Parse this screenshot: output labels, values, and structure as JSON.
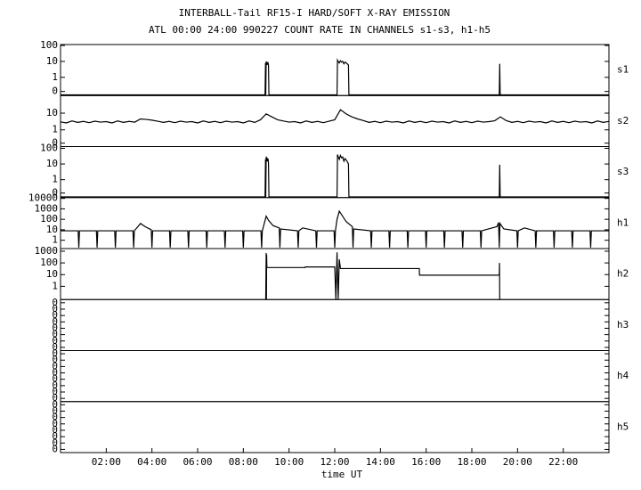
{
  "chart_data": [
    {
      "type": "line",
      "title": "INTERBALL-Tail RF15-I HARD/SOFT X-RAY EMISSION",
      "subtitle": "ATL 00:00 24:00 990227  COUNT RATE IN CHANNELS s1-s3, h1-h5",
      "label": "s1",
      "log": true,
      "color": "#000000",
      "xlim": [
        0,
        24
      ],
      "ylim": [
        0.072,
        114
      ],
      "yticks": [
        100,
        10,
        1,
        {
          "value": 0.13,
          "label": "0"
        }
      ],
      "x": [
        0,
        8.95,
        8.97,
        8.98,
        9.0,
        9.02,
        9.04,
        9.06,
        9.08,
        9.1,
        9.12,
        12.1,
        12.12,
        12.15,
        12.2,
        12.25,
        12.3,
        12.35,
        12.4,
        12.45,
        12.5,
        12.55,
        12.6,
        12.62,
        19.2,
        19.22,
        19.24,
        24
      ],
      "values": [
        0.08,
        0.08,
        8,
        0.08,
        10,
        6,
        9,
        7,
        8,
        6,
        0.08,
        0.08,
        12,
        10,
        8,
        11,
        9,
        10,
        7,
        9,
        8,
        7,
        6,
        0.08,
        0.08,
        7,
        0.08,
        0.08
      ]
    },
    {
      "type": "line",
      "label": "s2",
      "log": true,
      "color": "#000000",
      "xlim": [
        0,
        24
      ],
      "ylim": [
        0.1,
        113
      ],
      "yticks": [
        10,
        1,
        {
          "value": 0.16,
          "label": "0"
        }
      ],
      "x": [
        0,
        0.25,
        0.5,
        0.75,
        1,
        1.25,
        1.5,
        1.75,
        2,
        2.25,
        2.5,
        2.75,
        3,
        3.25,
        3.5,
        3.75,
        4,
        4.25,
        4.5,
        4.75,
        5,
        5.25,
        5.5,
        5.75,
        6,
        6.25,
        6.5,
        6.75,
        7,
        7.25,
        7.5,
        7.75,
        8,
        8.25,
        8.5,
        8.75,
        9,
        9.25,
        9.5,
        9.75,
        10,
        10.25,
        10.5,
        10.75,
        11,
        11.25,
        11.5,
        11.75,
        12,
        12.25,
        12.5,
        12.75,
        13,
        13.25,
        13.5,
        13.75,
        14,
        14.25,
        14.5,
        14.75,
        15,
        15.25,
        15.5,
        15.75,
        16,
        16.25,
        16.5,
        16.75,
        17,
        17.25,
        17.5,
        17.75,
        18,
        18.25,
        18.5,
        18.75,
        19,
        19.25,
        19.5,
        19.75,
        20,
        20.25,
        20.5,
        20.75,
        21,
        21.25,
        21.5,
        21.75,
        22,
        22.25,
        22.5,
        22.75,
        23,
        23.25,
        23.5,
        23.75,
        24
      ],
      "values": [
        3,
        2.6,
        3.4,
        2.8,
        3.2,
        2.7,
        3.3,
        2.9,
        3.1,
        2.6,
        3.4,
        2.8,
        3.2,
        2.9,
        4.5,
        4.2,
        3.8,
        3.3,
        2.8,
        3.2,
        2.7,
        3.3,
        2.9,
        3.1,
        2.6,
        3.4,
        2.8,
        3.2,
        2.7,
        3.3,
        2.9,
        3.1,
        2.6,
        3.4,
        2.8,
        4,
        9,
        6,
        4,
        3.4,
        2.9,
        3.1,
        2.6,
        3.4,
        2.8,
        3.2,
        2.7,
        3.3,
        4,
        16,
        9,
        6,
        4.5,
        3.6,
        2.8,
        3.2,
        2.7,
        3.3,
        2.9,
        3.1,
        2.6,
        3.4,
        2.8,
        3.2,
        2.7,
        3.3,
        2.9,
        3.1,
        2.6,
        3.4,
        2.8,
        3.2,
        2.7,
        3.3,
        2.9,
        3.1,
        3.5,
        6,
        3.6,
        2.8,
        3.2,
        2.7,
        3.3,
        2.9,
        3.1,
        2.6,
        3.4,
        2.8,
        3.2,
        2.7,
        3.3,
        2.9,
        3.1,
        2.6,
        3.4,
        2.8,
        3.2
      ]
    },
    {
      "type": "line",
      "label": "s3",
      "log": true,
      "color": "#000000",
      "xlim": [
        0,
        24
      ],
      "ylim": [
        0.072,
        130
      ],
      "yticks": [
        100,
        10,
        1,
        {
          "value": 0.14,
          "label": "0"
        }
      ],
      "x": [
        0,
        8.95,
        8.97,
        8.98,
        9.0,
        9.02,
        9.04,
        9.06,
        9.08,
        9.1,
        9.12,
        12.1,
        12.12,
        12.15,
        12.2,
        12.25,
        12.3,
        12.35,
        12.4,
        12.45,
        12.5,
        12.55,
        12.6,
        12.62,
        19.2,
        19.22,
        19.24,
        24
      ],
      "values": [
        0.08,
        0.08,
        20,
        0.08,
        30,
        15,
        25,
        18,
        22,
        12,
        0.08,
        0.08,
        40,
        30,
        20,
        35,
        25,
        28,
        15,
        22,
        18,
        14,
        10,
        0.08,
        0.08,
        9,
        0.08,
        0.08
      ]
    },
    {
      "type": "line",
      "label": "h1",
      "log": true,
      "color": "#000000",
      "xlim": [
        0,
        24
      ],
      "ylim": [
        0.16,
        12000
      ],
      "yticks": [
        10000,
        1000,
        100,
        10,
        1
      ],
      "x": [
        0,
        0.77,
        0.8,
        0.83,
        1.57,
        1.6,
        1.63,
        2.37,
        2.4,
        2.43,
        3.17,
        3.2,
        3.23,
        3.5,
        3.7,
        3.97,
        4.0,
        4.03,
        4.77,
        4.8,
        4.83,
        5.57,
        5.6,
        5.63,
        6.37,
        6.4,
        6.43,
        7.17,
        7.2,
        7.23,
        7.97,
        8.0,
        8.03,
        8.77,
        8.8,
        8.83,
        9.0,
        9.1,
        9.3,
        9.57,
        9.6,
        9.63,
        10.37,
        10.4,
        10.43,
        10.6,
        11.17,
        11.2,
        11.23,
        11.97,
        12.0,
        12.03,
        12.1,
        12.2,
        12.5,
        12.77,
        12.8,
        12.83,
        13.57,
        13.6,
        13.63,
        14.37,
        14.4,
        14.43,
        15.17,
        15.2,
        15.23,
        15.97,
        16.0,
        16.03,
        16.77,
        16.8,
        16.83,
        17.57,
        17.6,
        17.63,
        18.37,
        18.4,
        18.43,
        19.1,
        19.17,
        19.2,
        19.23,
        19.4,
        19.97,
        20.0,
        20.03,
        20.3,
        20.77,
        20.8,
        20.83,
        21.57,
        21.6,
        21.63,
        22.37,
        22.4,
        22.43,
        23.17,
        23.2,
        23.23,
        24
      ],
      "values": [
        8,
        8,
        0.2,
        8,
        8,
        0.2,
        8,
        8,
        0.2,
        8,
        8,
        0.2,
        8,
        40,
        20,
        10,
        0.2,
        8,
        8,
        0.2,
        8,
        8,
        0.2,
        8,
        8,
        0.2,
        8,
        8,
        0.2,
        8,
        8,
        0.2,
        8,
        8,
        0.2,
        8,
        200,
        80,
        25,
        15,
        0.2,
        12,
        8,
        0.2,
        8,
        15,
        8,
        0.2,
        8,
        8,
        0.2,
        8,
        100,
        600,
        60,
        20,
        0.2,
        12,
        8,
        0.2,
        8,
        8,
        0.2,
        8,
        8,
        0.2,
        8,
        8,
        0.2,
        8,
        8,
        0.2,
        8,
        8,
        0.2,
        8,
        8,
        0.2,
        8,
        20,
        50,
        0.2,
        40,
        12,
        8,
        0.2,
        8,
        15,
        8,
        0.2,
        8,
        8,
        0.2,
        8,
        8,
        0.2,
        8,
        8,
        0.2,
        8,
        8
      ]
    },
    {
      "type": "line",
      "label": "h2",
      "log": true,
      "color": "#000000",
      "xlim": [
        0,
        24
      ],
      "ylim": [
        0.074,
        1680
      ],
      "yticks": [
        1000,
        100,
        10,
        1
      ],
      "x": [
        8.98,
        9.0,
        9.01,
        9.02,
        9.03,
        10.7,
        10.71,
        12.0,
        12.05,
        12.1,
        12.15,
        12.2,
        12.25,
        15.7,
        15.71,
        19.2,
        19.21,
        19.22
      ],
      "values": [
        0.08,
        700,
        0.08,
        500,
        40,
        40,
        45,
        45,
        0.08,
        800,
        0.08,
        200,
        33,
        33,
        9,
        9,
        100,
        0.08
      ]
    },
    {
      "type": "line",
      "label": "h3",
      "log": false,
      "color": "#000000",
      "xlim": [
        0,
        24
      ],
      "ylim": [
        0,
        0.08
      ],
      "yticks": [
        {
          "value": 0.075,
          "label": "0"
        },
        {
          "value": 0.065,
          "label": "0"
        },
        {
          "value": 0.055,
          "label": "0"
        },
        {
          "value": 0.045,
          "label": "0"
        },
        {
          "value": 0.035,
          "label": "0"
        },
        {
          "value": 0.025,
          "label": "0"
        },
        {
          "value": 0.015,
          "label": "0"
        },
        {
          "value": 0.005,
          "label": "0"
        }
      ]
    },
    {
      "type": "line",
      "label": "h4",
      "log": false,
      "color": "#000000",
      "xlim": [
        0,
        24
      ],
      "ylim": [
        0,
        0.08
      ],
      "yticks": [
        {
          "value": 0.075,
          "label": "0"
        },
        {
          "value": 0.065,
          "label": "0"
        },
        {
          "value": 0.055,
          "label": "0"
        },
        {
          "value": 0.045,
          "label": "0"
        },
        {
          "value": 0.035,
          "label": "0"
        },
        {
          "value": 0.025,
          "label": "0"
        },
        {
          "value": 0.015,
          "label": "0"
        },
        {
          "value": 0.005,
          "label": "0"
        }
      ]
    },
    {
      "type": "line",
      "label": "h5",
      "log": false,
      "color": "#000000",
      "xlim": [
        0,
        24
      ],
      "ylim": [
        0,
        0.08
      ],
      "yticks": [
        {
          "value": 0.075,
          "label": "0"
        },
        {
          "value": 0.065,
          "label": "0"
        },
        {
          "value": 0.055,
          "label": "0"
        },
        {
          "value": 0.045,
          "label": "0"
        },
        {
          "value": 0.035,
          "label": "0"
        },
        {
          "value": 0.025,
          "label": "0"
        },
        {
          "value": 0.015,
          "label": "0"
        },
        {
          "value": 0.005,
          "label": "0"
        }
      ],
      "xlabel": "time UT",
      "xticks": [
        {
          "value": 2,
          "label": "02:00"
        },
        {
          "value": 4,
          "label": "04:00"
        },
        {
          "value": 6,
          "label": "06:00"
        },
        {
          "value": 8,
          "label": "08:00"
        },
        {
          "value": 10,
          "label": "10:00"
        },
        {
          "value": 12,
          "label": "12:00"
        },
        {
          "value": 14,
          "label": "14:00"
        },
        {
          "value": 16,
          "label": "16:00"
        },
        {
          "value": 18,
          "label": "18:00"
        },
        {
          "value": 20,
          "label": "20:00"
        },
        {
          "value": 22,
          "label": "22:00"
        }
      ]
    }
  ]
}
